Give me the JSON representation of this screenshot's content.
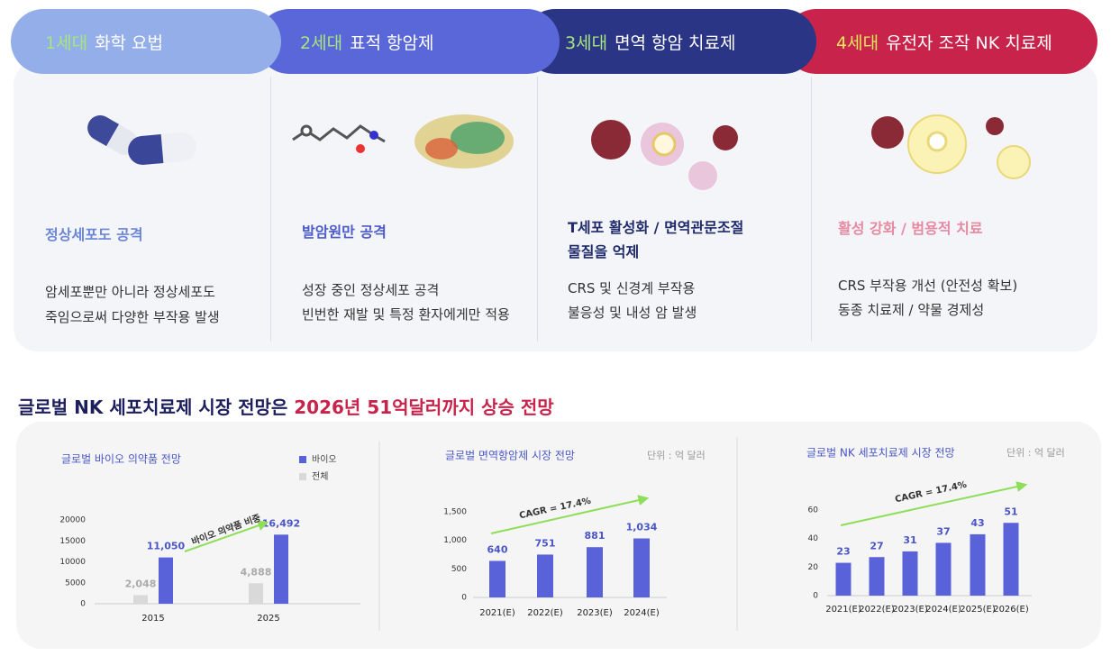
{
  "tabs": [
    {
      "number": "1세대",
      "name": "화학 요법",
      "heading": [
        "정상세포도 공격"
      ],
      "lines": [
        "암세포뿐만 아니라 정상세포도",
        "죽임으로써 다양한 부작용 발생"
      ]
    },
    {
      "number": "2세대",
      "name": "표적 항암제",
      "heading": [
        "발암원만 공격"
      ],
      "lines": [
        "성장 중인 정상세포 공격",
        "빈번한 재발 및 특정 환자에게만 적용"
      ]
    },
    {
      "number": "3세대",
      "name": "면역 항암 치료제",
      "heading": [
        "T세포 활성화 / 면역관문조절",
        "물질을 억제"
      ],
      "lines": [
        "CRS 및 신경계 부작용",
        "불응성 및 내성 암 발생"
      ]
    },
    {
      "number": "4세대",
      "name": "유전자 조작 NK 치료제",
      "heading": [
        "활성 강화 / 범용적 치료"
      ],
      "lines": [
        "CRS 부작용 개선 (안전성 확보)",
        "동종 치료제 / 약물 경제성"
      ]
    }
  ],
  "section_title": {
    "text": "글로벌 NK 세포치료제 시장 전망은",
    "highlight": "2026년 51억달러까지 상승 전망"
  },
  "chart_data": [
    {
      "type": "bar",
      "title": "글로벌 바이오 의약품 전망",
      "categories": [
        "2015",
        "2025"
      ],
      "series": [
        {
          "name": "바이오",
          "color": "#5a62d9",
          "values": [
            11050,
            16492
          ],
          "value_labels": [
            "11,050",
            "16,492"
          ]
        },
        {
          "name": "전체",
          "color": "#d9d9d9",
          "values": [
            2048,
            4888
          ],
          "value_labels": [
            "2,048",
            "4,888"
          ]
        }
      ],
      "ylim": [
        0,
        20000
      ],
      "yticks": [
        0,
        5000,
        10000,
        15000,
        20000
      ],
      "annotation": "바이오 의약품 비중"
    },
    {
      "type": "bar",
      "title": "글로벌 면역항암제 시장 전망",
      "unit": "단위 : 억 달러",
      "categories": [
        "2021(E)",
        "2022(E)",
        "2023(E)",
        "2024(E)"
      ],
      "series": [
        {
          "color": "#5a62d9",
          "values": [
            640,
            751,
            881,
            1034
          ],
          "value_labels": [
            "640",
            "751",
            "881",
            "1,034"
          ]
        }
      ],
      "ylim": [
        0,
        1500
      ],
      "yticks": [
        0,
        500,
        {
          "value": 1000,
          "label": "1,000"
        },
        {
          "value": 1500,
          "label": "1,500"
        }
      ],
      "annotation": "CAGR = 17.4%"
    },
    {
      "type": "bar",
      "title": "글로벌 NK 세포치료제 시장 전망",
      "unit": "단위 : 억 달러",
      "categories": [
        "2021(E)",
        "2022(E)",
        "2023(E)",
        "2024(E)",
        "2025(E)",
        "2026(E)"
      ],
      "series": [
        {
          "color": "#5a62d9",
          "values": [
            23,
            27,
            31,
            37,
            43,
            51
          ]
        }
      ],
      "ylim": [
        0,
        60
      ],
      "yticks": [
        0,
        20,
        40,
        60
      ],
      "annotation": "CAGR = 17.4%"
    }
  ]
}
